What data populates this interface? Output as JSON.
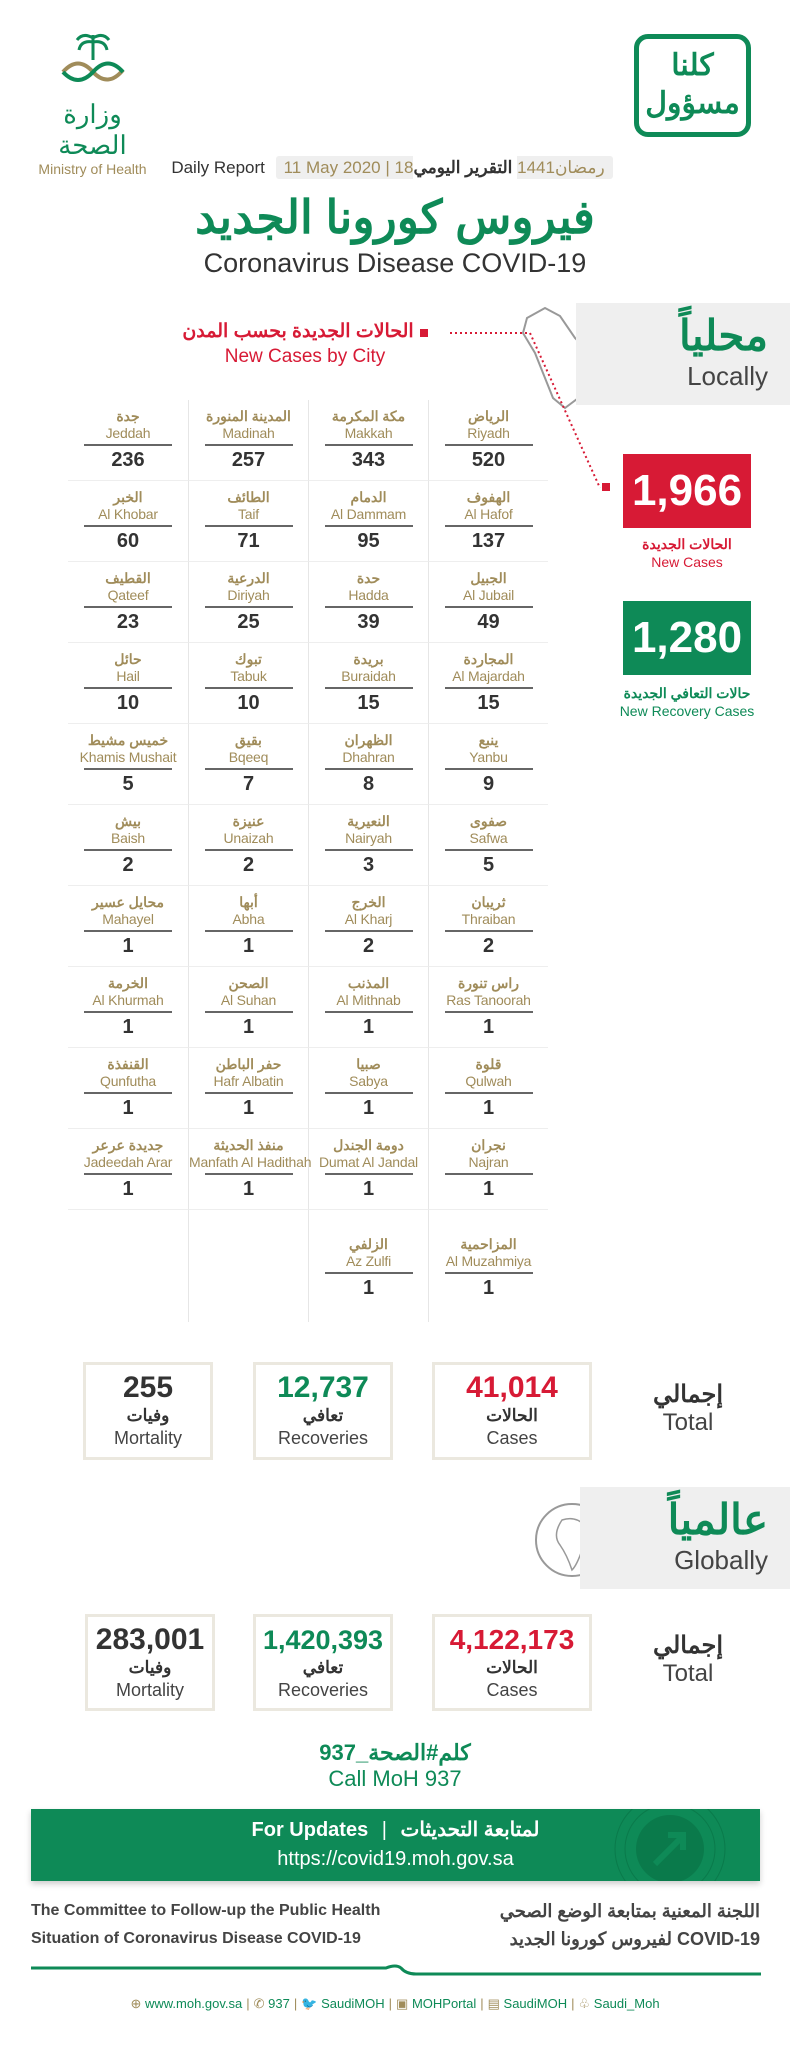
{
  "header": {
    "logo_ar": "وزارة الصحة",
    "logo_en": "Ministry of Health",
    "campaign_logo": "كلنا مسؤول",
    "report_en": "Daily Report",
    "report_date": "11 May 2020",
    "report_hijri": "18رمضان1441",
    "report_ar": "التقرير اليومي",
    "title_ar": "فيروس كورونا الجديد",
    "title_en": "Coronavirus Disease COVID-19"
  },
  "locally": {
    "ar": "محلياً",
    "en": "Locally"
  },
  "by_city": {
    "ar": "الحالات الجديدة بحسب المدن",
    "en": "New Cases by City"
  },
  "cities": [
    {
      "ar": "الرياض",
      "en": "Riyadh",
      "n": "520"
    },
    {
      "ar": "مكة المكرمة",
      "en": "Makkah",
      "n": "343"
    },
    {
      "ar": "المدينة المنورة",
      "en": "Madinah",
      "n": "257"
    },
    {
      "ar": "جدة",
      "en": "Jeddah",
      "n": "236"
    },
    {
      "ar": "الهفوف",
      "en": "Al Hafof",
      "n": "137"
    },
    {
      "ar": "الدمام",
      "en": "Al Dammam",
      "n": "95"
    },
    {
      "ar": "الطائف",
      "en": "Taif",
      "n": "71"
    },
    {
      "ar": "الخبر",
      "en": "Al Khobar",
      "n": "60"
    },
    {
      "ar": "الجبيل",
      "en": "Al Jubail",
      "n": "49"
    },
    {
      "ar": "حدة",
      "en": "Hadda",
      "n": "39"
    },
    {
      "ar": "الدرعية",
      "en": "Diriyah",
      "n": "25"
    },
    {
      "ar": "القطيف",
      "en": "Qateef",
      "n": "23"
    },
    {
      "ar": "المجاردة",
      "en": "Al Majardah",
      "n": "15"
    },
    {
      "ar": "بريدة",
      "en": "Buraidah",
      "n": "15"
    },
    {
      "ar": "تبوك",
      "en": "Tabuk",
      "n": "10"
    },
    {
      "ar": "حائل",
      "en": "Hail",
      "n": "10"
    },
    {
      "ar": "ينبع",
      "en": "Yanbu",
      "n": "9"
    },
    {
      "ar": "الظهران",
      "en": "Dhahran",
      "n": "8"
    },
    {
      "ar": "بقيق",
      "en": "Bqeeq",
      "n": "7"
    },
    {
      "ar": "خميس مشيط",
      "en": "Khamis Mushait",
      "n": "5"
    },
    {
      "ar": "صفوى",
      "en": "Safwa",
      "n": "5"
    },
    {
      "ar": "النعيرية",
      "en": "Nairyah",
      "n": "3"
    },
    {
      "ar": "عنيزة",
      "en": "Unaizah",
      "n": "2"
    },
    {
      "ar": "بيش",
      "en": "Baish",
      "n": "2"
    },
    {
      "ar": "ثريبان",
      "en": "Thraiban",
      "n": "2"
    },
    {
      "ar": "الخرج",
      "en": "Al Kharj",
      "n": "2"
    },
    {
      "ar": "أبها",
      "en": "Abha",
      "n": "1"
    },
    {
      "ar": "محايل عسير",
      "en": "Mahayel",
      "n": "1"
    },
    {
      "ar": "راس تنورة",
      "en": "Ras Tanoorah",
      "n": "1"
    },
    {
      "ar": "المذنب",
      "en": "Al Mithnab",
      "n": "1"
    },
    {
      "ar": "الصحن",
      "en": "Al Suhan",
      "n": "1"
    },
    {
      "ar": "الخرمة",
      "en": "Al Khurmah",
      "n": "1"
    },
    {
      "ar": "قلوة",
      "en": "Qulwah",
      "n": "1"
    },
    {
      "ar": "صبيا",
      "en": "Sabya",
      "n": "1"
    },
    {
      "ar": "حفر الباطن",
      "en": "Hafr Albatin",
      "n": "1"
    },
    {
      "ar": "القنفذة",
      "en": "Qunfutha",
      "n": "1"
    },
    {
      "ar": "نجران",
      "en": "Najran",
      "n": "1"
    },
    {
      "ar": "دومة الجندل",
      "en": "Dumat Al Jandal",
      "n": "1"
    },
    {
      "ar": "منفذ الحديثة",
      "en": "Manfath Al Hadithah",
      "n": "1"
    },
    {
      "ar": "جديدة عرعر",
      "en": "Jadeedah Arar",
      "n": "1"
    },
    {
      "ar": "المزاحمية",
      "en": "Al Muzahmiya",
      "n": "1"
    },
    {
      "ar": "الزلفي",
      "en": "Az Zulfi",
      "n": "1"
    }
  ],
  "new_cases": {
    "value": "1,966",
    "ar": "الحالات الجديدة",
    "en": "New Cases"
  },
  "new_recovery": {
    "value": "1,280",
    "ar": "حالات التعافي الجديدة",
    "en": "New Recovery Cases"
  },
  "local_total": {
    "label_ar": "إجمالي",
    "label_en": "Total",
    "cases": {
      "value": "41,014",
      "ar": "الحالات",
      "en": "Cases"
    },
    "recoveries": {
      "value": "12,737",
      "ar": "تعافي",
      "en": "Recoveries"
    },
    "mortality": {
      "value": "255",
      "ar": "وفيات",
      "en": "Mortality"
    }
  },
  "globally": {
    "ar": "عالمياً",
    "en": "Globally"
  },
  "global_total": {
    "label_ar": "إجمالي",
    "label_en": "Total",
    "cases": {
      "value": "4,122,173",
      "ar": "الحالات",
      "en": "Cases"
    },
    "recoveries": {
      "value": "1,420,393",
      "ar": "تعافي",
      "en": "Recoveries"
    },
    "mortality": {
      "value": "283,001",
      "ar": "وفيات",
      "en": "Mortality"
    }
  },
  "call": {
    "ar": "كلم#الصحة_937",
    "en": "Call MoH 937"
  },
  "banner": {
    "en": "For Updates",
    "sep": "|",
    "ar": "لمتابعة التحديثات",
    "url": "https://covid19.moh.gov.sa"
  },
  "committee": {
    "en1": "The Committee to Follow-up the Public Health",
    "en2": "Situation of Coronavirus Disease COVID-19",
    "ar1": "اللجنة المعنية بمتابعة الوضع الصحي",
    "ar2": "لفيروس كورونا الجديد COVID-19"
  },
  "social": [
    "www.moh.gov.sa",
    "937",
    "SaudiMOH",
    "MOHPortal",
    "SaudiMOH",
    "Saudi_Moh"
  ],
  "colors": {
    "green": "#0e8a57",
    "red": "#d71a35",
    "gold": "#a08c5a",
    "gray_box": "#efefef"
  }
}
